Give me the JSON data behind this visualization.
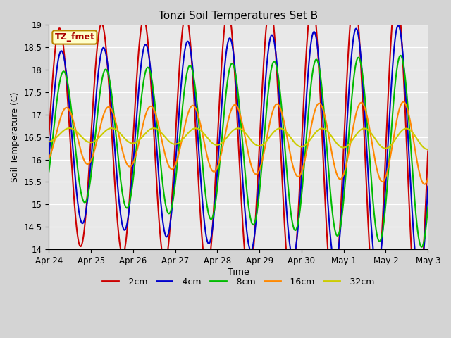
{
  "title": "Tonzi Soil Temperatures Set B",
  "xlabel": "Time",
  "ylabel": "Soil Temperature (C)",
  "ylim": [
    14.0,
    19.0
  ],
  "yticks": [
    14.0,
    14.5,
    15.0,
    15.5,
    16.0,
    16.5,
    17.0,
    17.5,
    18.0,
    18.5,
    19.0
  ],
  "xtick_labels": [
    "Apr 24",
    "Apr 25",
    "Apr 26",
    "Apr 27",
    "Apr 28",
    "Apr 29",
    "Apr 30",
    "May 1",
    "May 2",
    "May 3"
  ],
  "legend_label": "TZ_fmet",
  "series_names": [
    "-2cm",
    "-4cm",
    "-8cm",
    "-16cm",
    "-32cm"
  ],
  "series_colors": [
    "#cc0000",
    "#0000cc",
    "#00bb00",
    "#ff8800",
    "#cccc00"
  ],
  "series_lw": [
    1.5,
    1.5,
    1.5,
    1.5,
    1.5
  ],
  "series_amp": [
    2.35,
    1.85,
    1.4,
    0.6,
    0.15
  ],
  "series_phase": [
    0.0,
    0.28,
    0.62,
    1.05,
    1.5
  ],
  "series_mean": [
    16.55,
    16.55,
    16.55,
    16.55,
    16.55
  ],
  "series_trend": [
    -0.04,
    -0.04,
    -0.04,
    -0.02,
    -0.01
  ],
  "background_color": "#d4d4d4",
  "axes_bg_color": "#e8e8e8",
  "n_points": 2160,
  "legend_items": [
    "-2cm",
    "-4cm",
    "-8cm",
    "-16cm",
    "-32cm"
  ],
  "legend_colors": [
    "#cc0000",
    "#0000cc",
    "#00bb00",
    "#ff8800",
    "#cccc00"
  ]
}
